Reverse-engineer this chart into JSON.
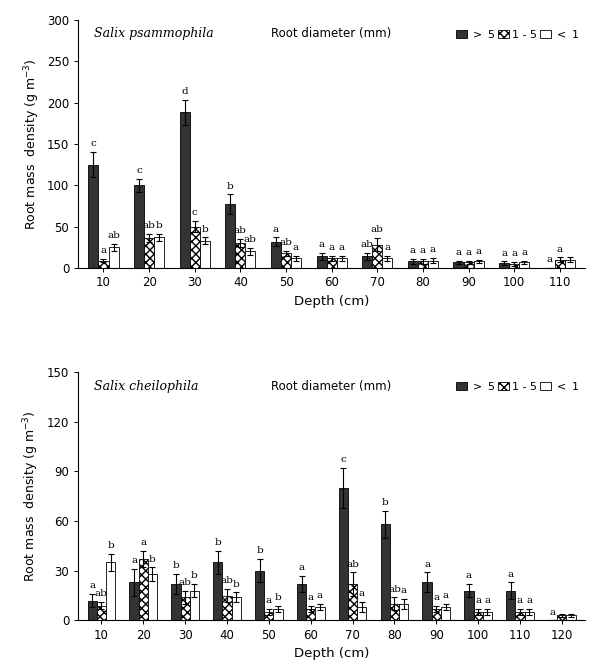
{
  "plot1": {
    "title": "Salix psammophila",
    "depths": [
      10,
      20,
      30,
      40,
      50,
      60,
      70,
      80,
      90,
      100,
      110
    ],
    "bar_gt5": [
      125,
      100,
      188,
      77,
      32,
      14,
      14,
      8,
      7,
      6,
      0
    ],
    "bar_1to5": [
      9,
      36,
      50,
      30,
      18,
      12,
      28,
      8,
      7,
      5,
      10
    ],
    "bar_lt1": [
      25,
      37,
      33,
      20,
      12,
      12,
      12,
      9,
      8,
      7,
      10
    ],
    "err_gt5": [
      15,
      8,
      15,
      12,
      5,
      4,
      4,
      3,
      2,
      2,
      0
    ],
    "err_1to5": [
      2,
      5,
      7,
      5,
      3,
      3,
      8,
      3,
      2,
      2,
      3
    ],
    "err_lt1": [
      4,
      4,
      4,
      4,
      3,
      3,
      3,
      3,
      2,
      2,
      3
    ],
    "labels_gt5": [
      "c",
      "c",
      "d",
      "b",
      "a",
      "a",
      "ab",
      "a",
      "a",
      "a",
      "a"
    ],
    "labels_1to5": [
      "a",
      "ab",
      "c",
      "ab",
      "ab",
      "a",
      "ab",
      "a",
      "a",
      "a",
      "a"
    ],
    "labels_lt1": [
      "ab",
      "b",
      "b",
      "ab",
      "a",
      "a",
      "a",
      "a",
      "a",
      "a",
      ""
    ],
    "ylim": [
      0,
      300
    ],
    "yticks": [
      0,
      50,
      100,
      150,
      200,
      250,
      300
    ]
  },
  "plot2": {
    "title": "Salix cheilophila",
    "depths": [
      10,
      20,
      30,
      40,
      50,
      60,
      70,
      80,
      90,
      100,
      110,
      120
    ],
    "bar_gt5": [
      12,
      23,
      22,
      35,
      30,
      22,
      80,
      58,
      23,
      18,
      18,
      0
    ],
    "bar_1to5": [
      9,
      37,
      14,
      15,
      5,
      7,
      22,
      10,
      7,
      5,
      5,
      3
    ],
    "bar_lt1": [
      35,
      28,
      18,
      14,
      7,
      8,
      8,
      10,
      8,
      5,
      5,
      3
    ],
    "err_gt5": [
      4,
      8,
      6,
      7,
      7,
      5,
      12,
      8,
      6,
      4,
      5,
      0
    ],
    "err_1to5": [
      2,
      5,
      4,
      4,
      2,
      2,
      7,
      4,
      2,
      2,
      2,
      1
    ],
    "err_lt1": [
      5,
      4,
      4,
      3,
      2,
      2,
      3,
      3,
      2,
      2,
      2,
      1
    ],
    "labels_gt5": [
      "a",
      "a",
      "b",
      "b",
      "b",
      "a",
      "c",
      "b",
      "a",
      "a",
      "a",
      "a"
    ],
    "labels_1to5": [
      "ab",
      "a",
      "ab",
      "ab",
      "a",
      "a",
      "ab",
      "ab",
      "a",
      "a",
      "a",
      ""
    ],
    "labels_lt1": [
      "b",
      "b",
      "b",
      "b",
      "b",
      "a",
      "a",
      "a",
      "a",
      "a",
      "a",
      ""
    ],
    "ylim": [
      0,
      150
    ],
    "yticks": [
      0,
      30,
      60,
      90,
      120,
      150
    ]
  },
  "bar_width": 0.22,
  "color_gt5": "#333333",
  "color_1to5": "#ffffff",
  "color_lt1": "#ffffff",
  "hatch_gt5": "",
  "hatch_1to5": "xxxx",
  "hatch_lt1": "",
  "xlabel": "Depth (cm)",
  "ylabel": "Root mass density (g m",
  "ylabel_super": "-3",
  "ylabel2": ")",
  "edgecolor": "#000000",
  "title_fontsize": 9,
  "axis_fontsize": 9,
  "label_fontsize": 7.5,
  "tick_fontsize": 8.5
}
